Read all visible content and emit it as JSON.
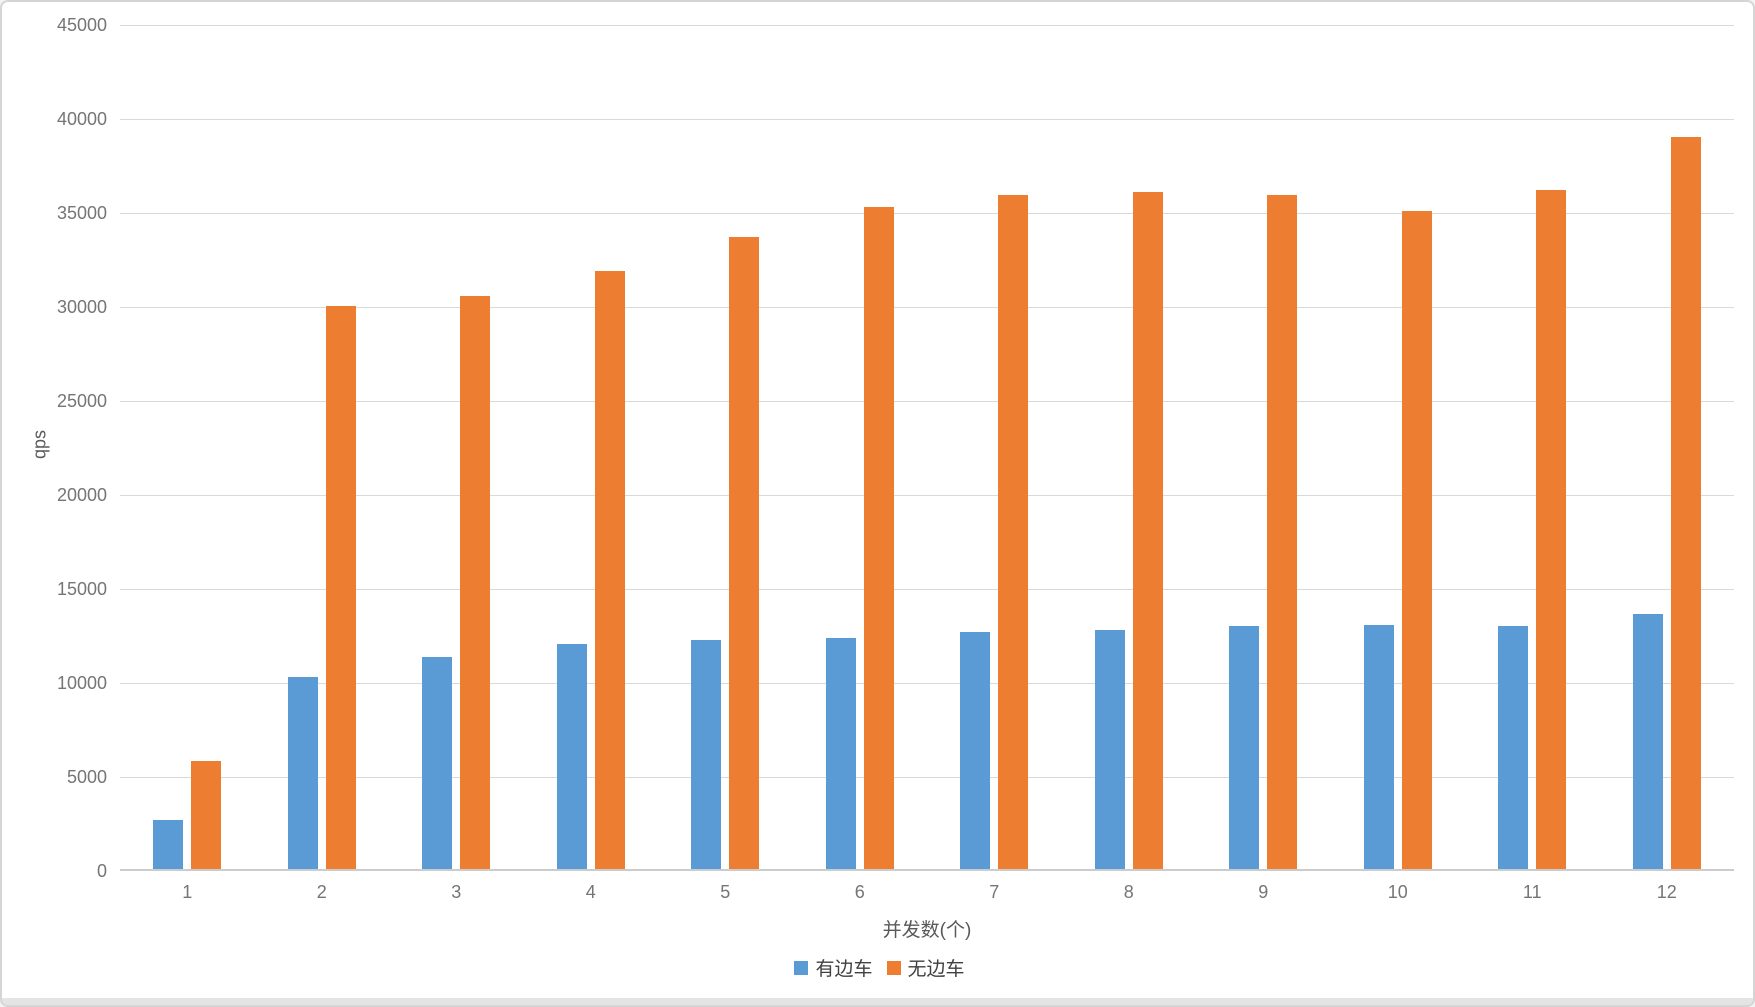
{
  "chart_data": {
    "type": "bar",
    "title": "",
    "xlabel": "并发数(个)",
    "ylabel": "qps",
    "categories": [
      "1",
      "2",
      "3",
      "4",
      "5",
      "6",
      "7",
      "8",
      "9",
      "10",
      "11",
      "12"
    ],
    "series": [
      {
        "name": "有边车",
        "color": "#5B9BD5",
        "values": [
          2600,
          10200,
          11300,
          11950,
          12200,
          12300,
          12600,
          12700,
          12950,
          13000,
          12950,
          13550
        ]
      },
      {
        "name": "无边车",
        "color": "#ED7D31",
        "values": [
          5750,
          29950,
          30500,
          31800,
          33600,
          35200,
          35850,
          36000,
          35850,
          35000,
          36100,
          38950
        ]
      }
    ],
    "ylim": [
      0,
      45000
    ],
    "y_tick_step": 5000,
    "y_ticks": [
      0,
      5000,
      10000,
      15000,
      20000,
      25000,
      30000,
      35000,
      40000,
      45000
    ],
    "grid": true,
    "legend_position": "bottom"
  },
  "frame": {
    "border_color": "#d5d5d5",
    "gridline_color": "#d9d9d9",
    "tick_label_color": "#757575",
    "axis_title_color": "#595959"
  }
}
